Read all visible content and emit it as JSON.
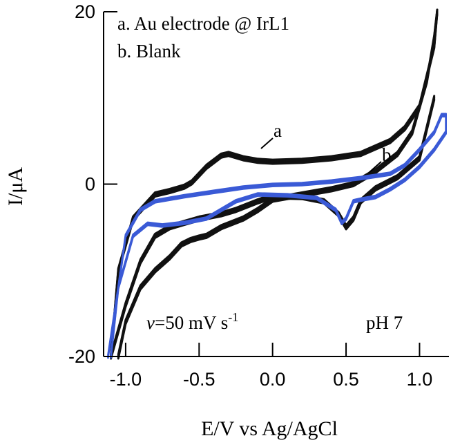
{
  "chart_data": {
    "type": "line",
    "title": "",
    "xlabel": "E/V vs Ag/AgCl",
    "ylabel": "I/μA",
    "xlim": [
      -1.15,
      1.2
    ],
    "ylim": [
      -20,
      20
    ],
    "x_ticks": [
      {
        "value": -1.0,
        "label": "-1.0"
      },
      {
        "value": -0.5,
        "label": "-0.5"
      },
      {
        "value": 0.0,
        "label": "0.0"
      },
      {
        "value": 0.5,
        "label": "0.5"
      },
      {
        "value": 1.0,
        "label": "1.0"
      }
    ],
    "y_ticks": [
      {
        "value": -20,
        "label": "-20"
      },
      {
        "value": 0,
        "label": "0"
      },
      {
        "value": 20,
        "label": "20"
      }
    ],
    "grid": false,
    "legend_position": "top-left",
    "legend": [
      "a. Au electrode @ IrL1",
      "b. Blank"
    ],
    "annotations": {
      "scan_rate_symbol": "v",
      "scan_rate_text": "=50 mV s",
      "scan_rate_exp": "-1",
      "ph": "pH 7",
      "label_a": "a",
      "label_b": "b"
    },
    "colors": {
      "a": "#111111",
      "b": "#3a5ad6"
    },
    "series": [
      {
        "key": "a",
        "color": "#111111",
        "forward": [
          [
            -1.05,
            -20
          ],
          [
            -1.0,
            -16
          ],
          [
            -0.9,
            -12
          ],
          [
            -0.8,
            -10
          ],
          [
            -0.7,
            -8.5
          ],
          [
            -0.62,
            -7
          ],
          [
            -0.56,
            -6.5
          ],
          [
            -0.5,
            -6.2
          ],
          [
            -0.45,
            -6
          ],
          [
            -0.35,
            -5
          ],
          [
            -0.2,
            -4
          ],
          [
            -0.1,
            -3
          ],
          [
            0.0,
            -1.8
          ],
          [
            0.2,
            -1.2
          ],
          [
            0.4,
            -0.6
          ],
          [
            0.55,
            0
          ],
          [
            0.7,
            1.5
          ],
          [
            0.85,
            3.5
          ],
          [
            0.95,
            6
          ],
          [
            1.05,
            12
          ],
          [
            1.1,
            17
          ],
          [
            1.12,
            20
          ]
        ],
        "reverse": [
          [
            1.12,
            20
          ],
          [
            1.1,
            16
          ],
          [
            1.0,
            9
          ],
          [
            0.9,
            6.5
          ],
          [
            0.8,
            5
          ],
          [
            0.6,
            3.5
          ],
          [
            0.4,
            3
          ],
          [
            0.2,
            2.7
          ],
          [
            0.0,
            2.6
          ],
          [
            -0.1,
            2.7
          ],
          [
            -0.2,
            3
          ],
          [
            -0.3,
            3.5
          ],
          [
            -0.35,
            3.3
          ],
          [
            -0.45,
            2
          ],
          [
            -0.55,
            0.2
          ],
          [
            -0.6,
            -0.3
          ],
          [
            -0.7,
            -0.8
          ],
          [
            -0.8,
            -1.2
          ],
          [
            -0.95,
            -4
          ],
          [
            -1.05,
            -10
          ],
          [
            -1.1,
            -20
          ]
        ],
        "return": [
          [
            -1.1,
            -20
          ],
          [
            -1.0,
            -14
          ],
          [
            -0.9,
            -9
          ],
          [
            -0.8,
            -6
          ],
          [
            -0.7,
            -5
          ],
          [
            -0.6,
            -4.5
          ],
          [
            -0.5,
            -4
          ],
          [
            -0.35,
            -3.5
          ],
          [
            -0.25,
            -3
          ],
          [
            -0.1,
            -2
          ],
          [
            0.0,
            -1.4
          ],
          [
            0.2,
            -1.5
          ],
          [
            0.35,
            -2
          ],
          [
            0.45,
            -3.5
          ],
          [
            0.5,
            -5
          ],
          [
            0.55,
            -4
          ],
          [
            0.6,
            -2
          ],
          [
            0.7,
            -0.5
          ],
          [
            0.85,
            0.8
          ],
          [
            1.0,
            3
          ],
          [
            1.1,
            10
          ]
        ]
      },
      {
        "key": "b",
        "color": "#3a5ad6",
        "forward": [
          [
            -1.1,
            -20
          ],
          [
            -1.05,
            -12
          ],
          [
            -1.0,
            -6
          ],
          [
            -0.9,
            -3
          ],
          [
            -0.8,
            -2
          ],
          [
            -0.6,
            -1.4
          ],
          [
            -0.4,
            -0.9
          ],
          [
            -0.2,
            -0.4
          ],
          [
            0.0,
            -0.1
          ],
          [
            0.2,
            0
          ],
          [
            0.4,
            0.3
          ],
          [
            0.6,
            0.7
          ],
          [
            0.8,
            1.2
          ],
          [
            0.9,
            2.2
          ],
          [
            1.0,
            4
          ],
          [
            1.1,
            6
          ],
          [
            1.15,
            8
          ],
          [
            1.18,
            8
          ]
        ],
        "reverse": [
          [
            1.18,
            8
          ],
          [
            1.18,
            6
          ],
          [
            1.1,
            4
          ],
          [
            1.0,
            2
          ],
          [
            0.9,
            0.5
          ],
          [
            0.8,
            -0.6
          ],
          [
            0.7,
            -1.5
          ],
          [
            0.6,
            -1.8
          ],
          [
            0.55,
            -2
          ],
          [
            0.5,
            -4
          ],
          [
            0.47,
            -4.5
          ],
          [
            0.43,
            -3
          ],
          [
            0.3,
            -1.6
          ],
          [
            0.1,
            -1.3
          ],
          [
            -0.1,
            -1.2
          ],
          [
            -0.25,
            -2
          ],
          [
            -0.35,
            -3
          ],
          [
            -0.45,
            -4
          ],
          [
            -0.6,
            -4.5
          ],
          [
            -0.75,
            -4.8
          ],
          [
            -0.85,
            -4.6
          ],
          [
            -0.95,
            -6
          ],
          [
            -1.05,
            -12
          ],
          [
            -1.12,
            -20
          ]
        ]
      }
    ]
  }
}
